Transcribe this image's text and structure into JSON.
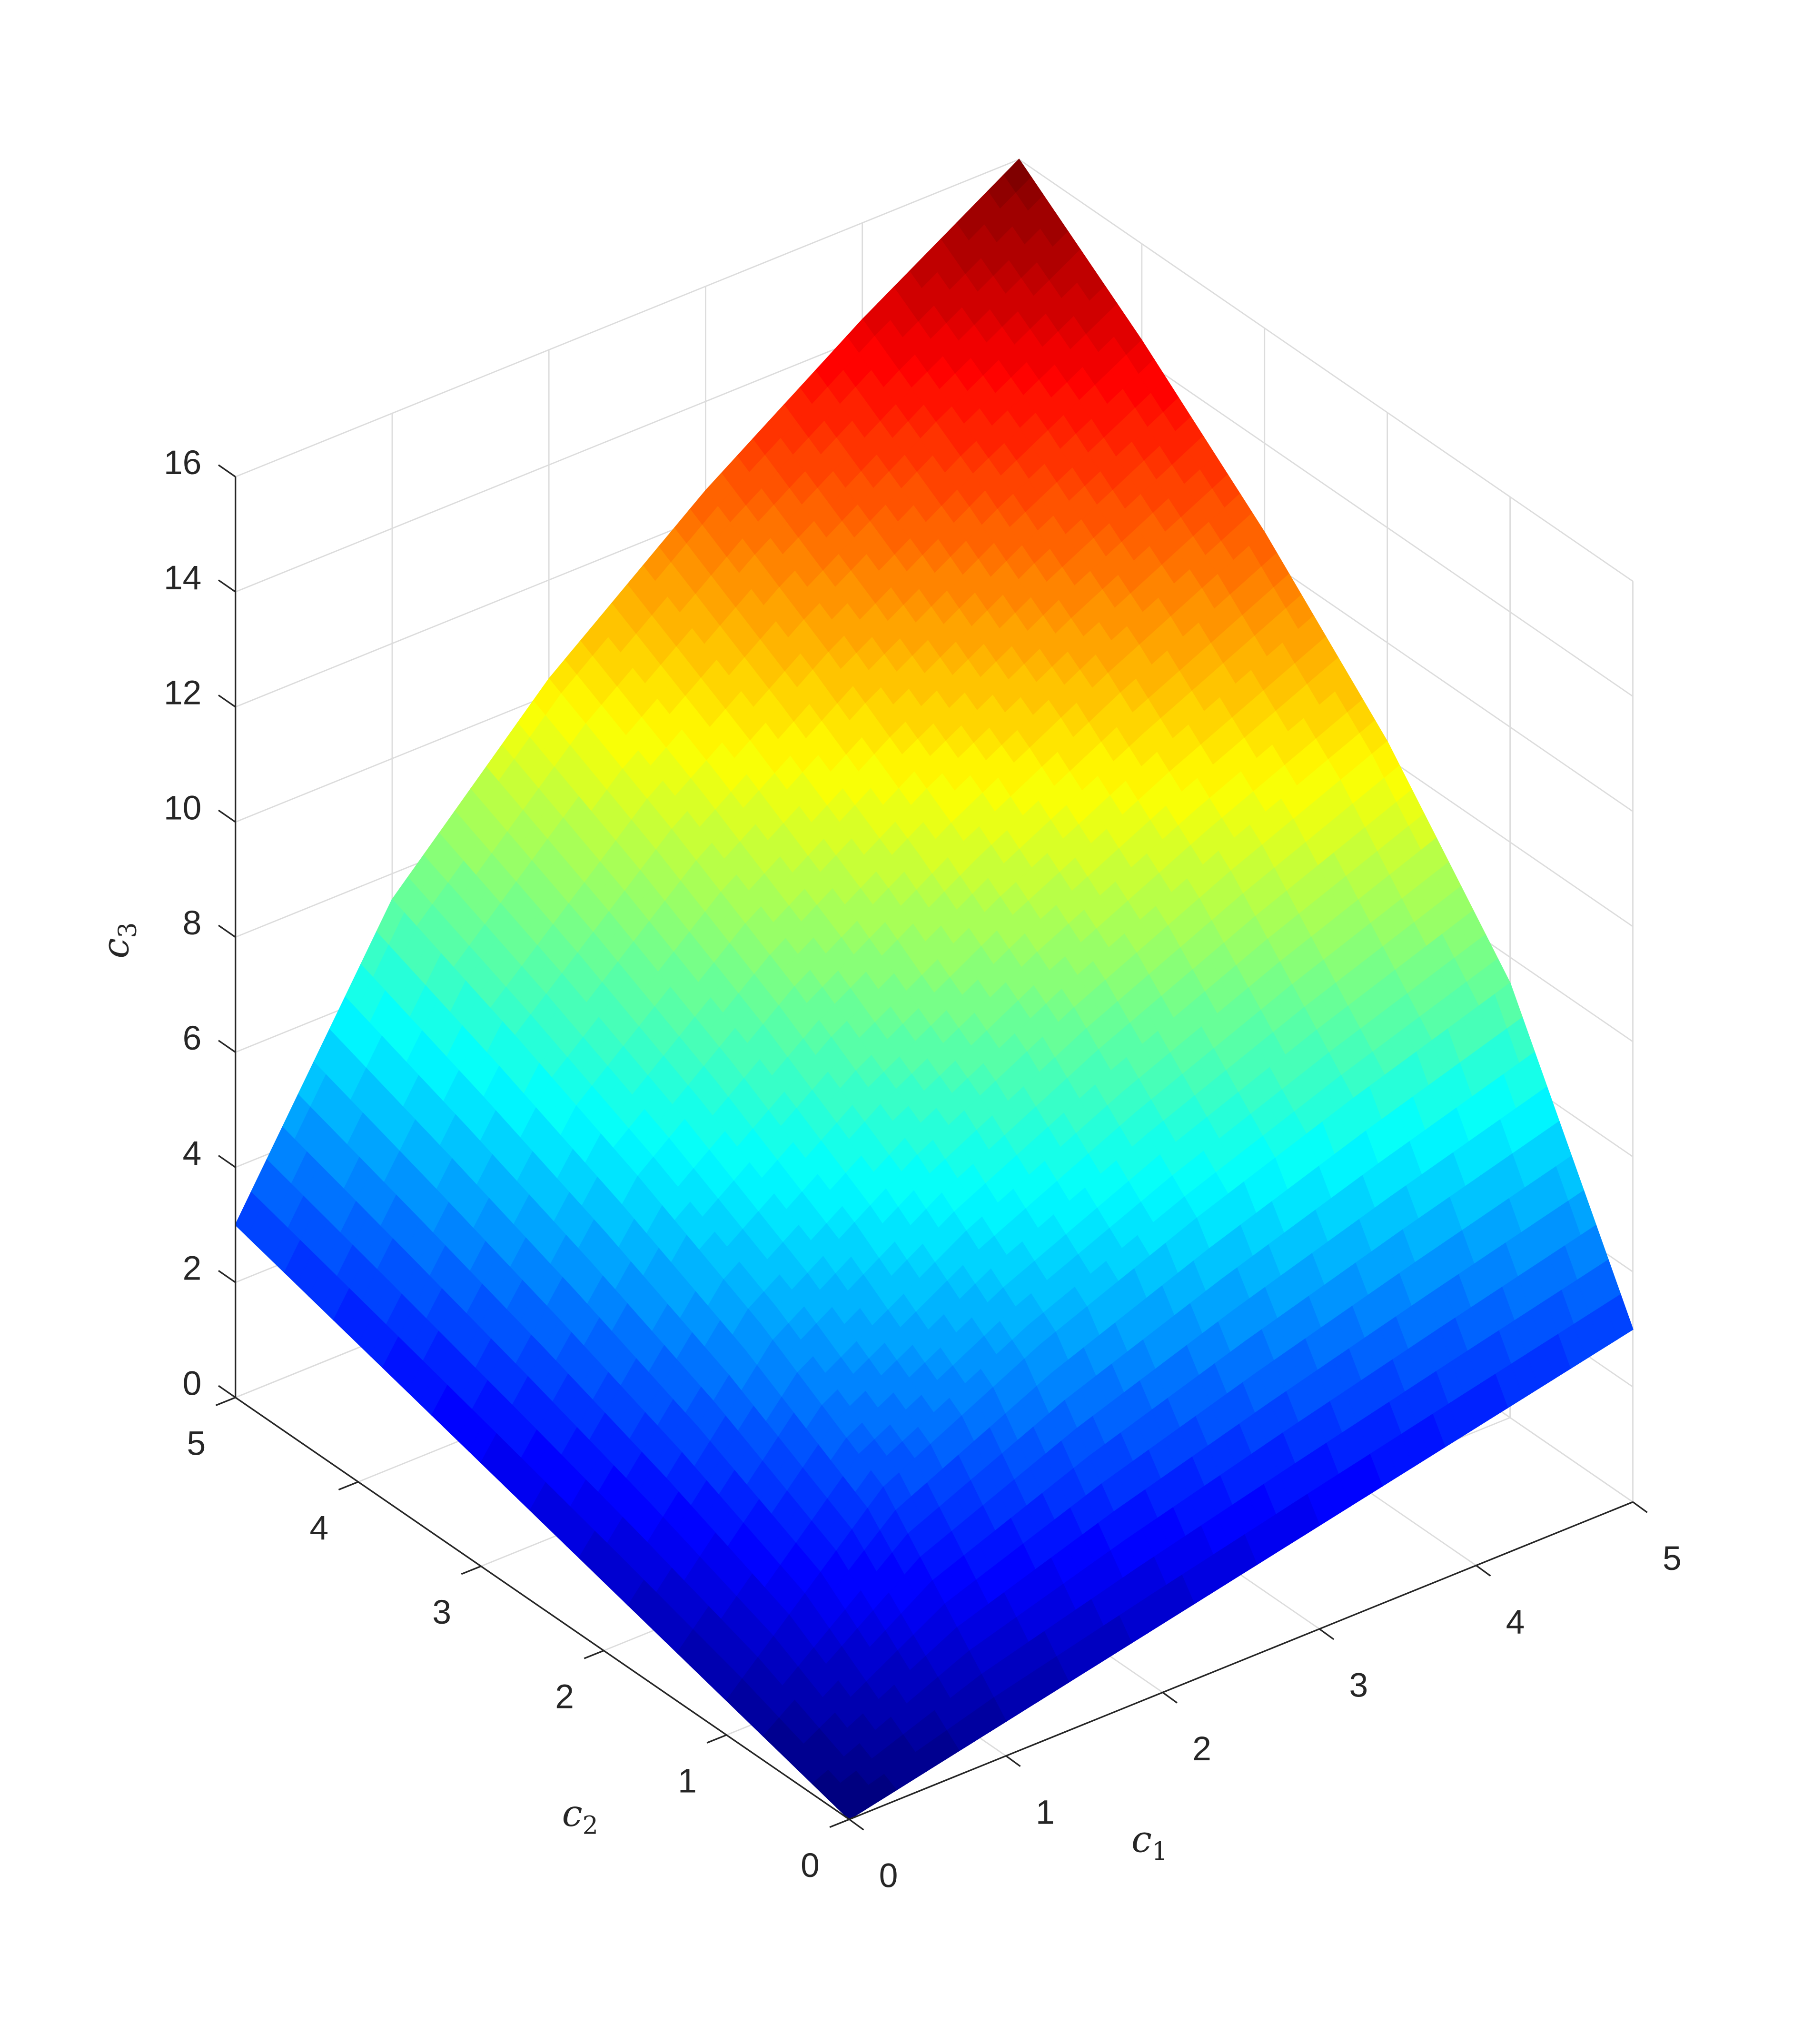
{
  "chart_data": {
    "type": "surface",
    "xlabel": "c1",
    "ylabel": "c2",
    "zlabel": "c3",
    "xlim": [
      0,
      5
    ],
    "ylim": [
      0,
      5
    ],
    "zlim": [
      0,
      16
    ],
    "xticks": [
      "0",
      "1",
      "2",
      "3",
      "4",
      "5"
    ],
    "yticks": [
      "0",
      "1",
      "2",
      "3",
      "4",
      "5"
    ],
    "zticks": [
      "0",
      "2",
      "4",
      "6",
      "8",
      "10",
      "12",
      "14",
      "16"
    ],
    "grid": true,
    "colormap": "jet",
    "grid_c1": [
      0,
      1,
      2,
      3,
      4,
      5
    ],
    "grid_c2": [
      0,
      1,
      2,
      3,
      4,
      5
    ],
    "c3": [
      [
        0.0,
        0.6,
        1.2,
        1.8,
        2.4,
        3.0
      ],
      [
        0.6,
        3.2,
        4.57,
        5.67,
        6.65,
        7.55
      ],
      [
        1.2,
        4.57,
        6.4,
        7.86,
        9.13,
        10.28
      ],
      [
        1.8,
        5.67,
        7.86,
        9.6,
        11.1,
        12.45
      ],
      [
        2.4,
        6.65,
        9.13,
        11.1,
        12.8,
        14.32
      ],
      [
        3.0,
        7.55,
        10.28,
        12.45,
        14.32,
        16.0
      ]
    ]
  }
}
